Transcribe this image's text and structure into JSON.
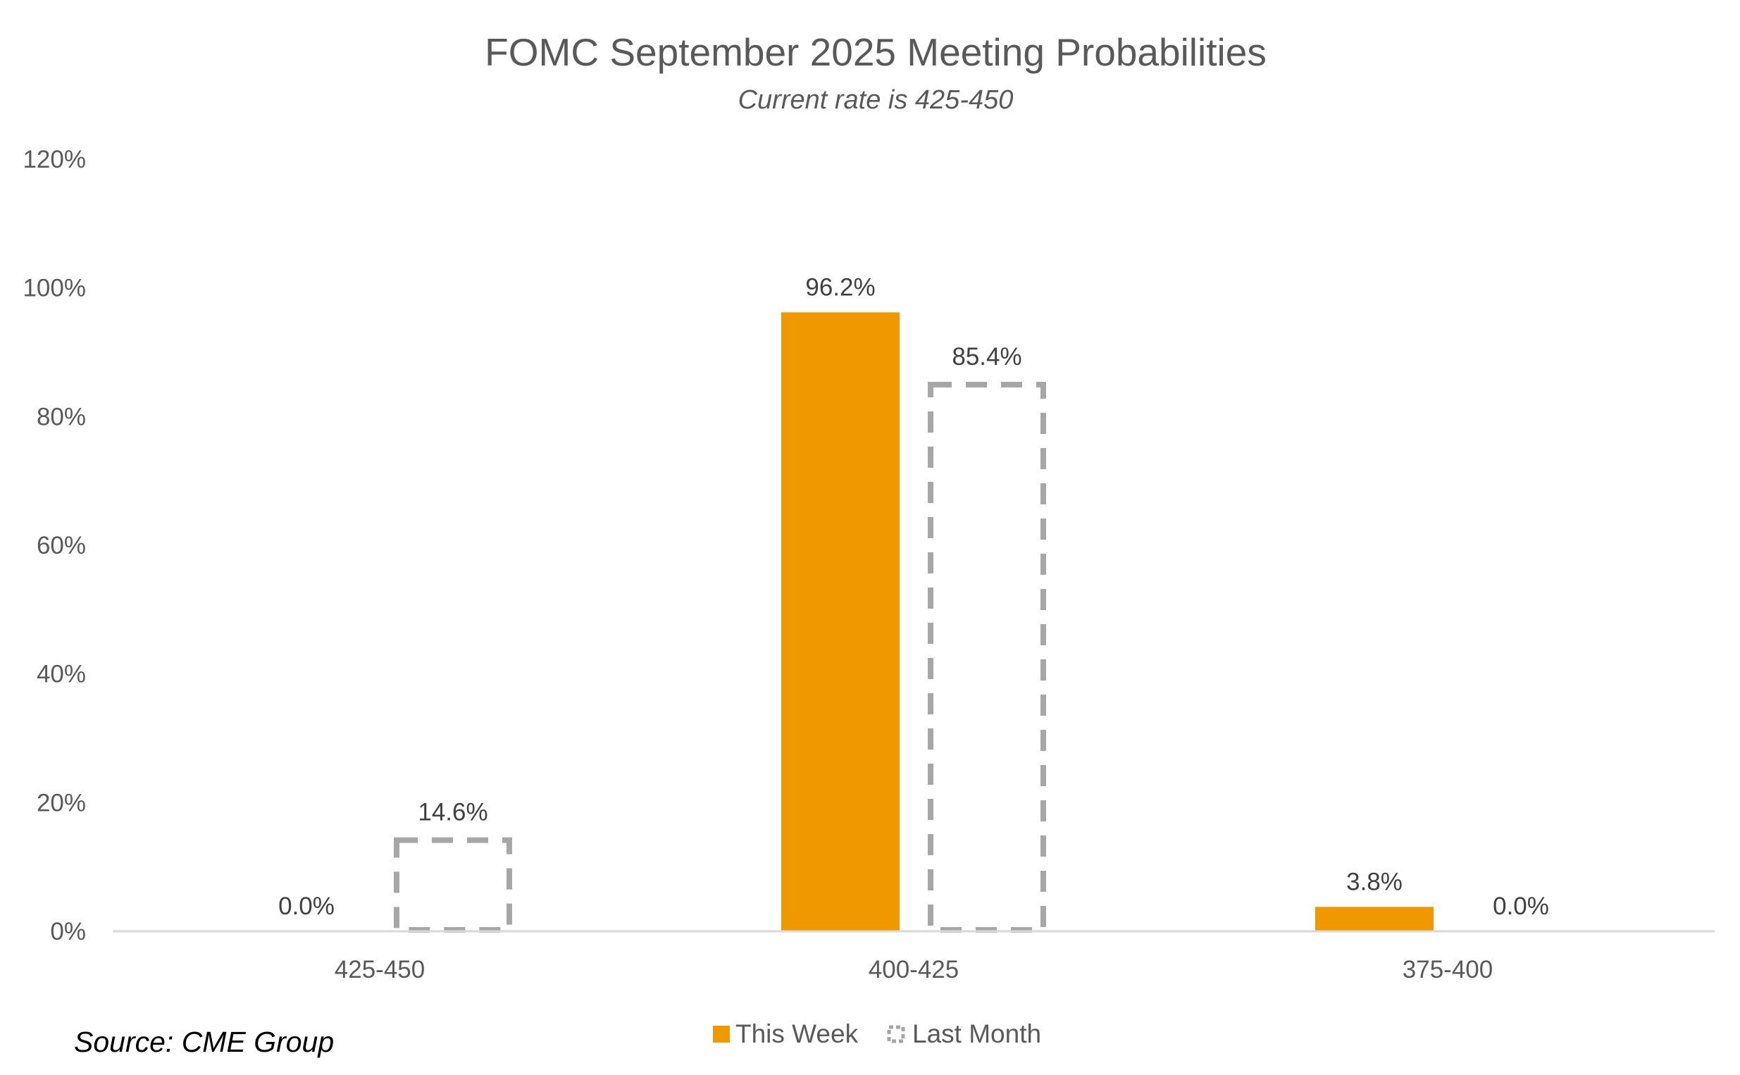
{
  "chart_data": {
    "type": "bar",
    "title": "FOMC September 2025 Meeting Probabilities",
    "subtitle": "Current rate is 425-450",
    "categories": [
      "425-450",
      "400-425",
      "375-400"
    ],
    "series": [
      {
        "name": "This Week",
        "values": [
          0.0,
          96.2,
          3.8
        ],
        "labels": [
          "0.0%",
          "96.2%",
          "3.8%"
        ],
        "color": "#F09800",
        "style": "solid"
      },
      {
        "name": "Last Month",
        "values": [
          14.6,
          85.4,
          0.0
        ],
        "labels": [
          "14.6%",
          "85.4%",
          "0.0%"
        ],
        "color": "#A6A6A6",
        "style": "dashed-outline"
      }
    ],
    "ylim": [
      0,
      120
    ],
    "yticks": [
      0,
      20,
      40,
      60,
      80,
      100,
      120
    ],
    "ytick_labels": [
      "0%",
      "20%",
      "40%",
      "60%",
      "80%",
      "100%",
      "120%"
    ],
    "xlabel": "",
    "ylabel": "",
    "grid": false,
    "legend_position": "bottom"
  },
  "source": "Source: CME Group"
}
